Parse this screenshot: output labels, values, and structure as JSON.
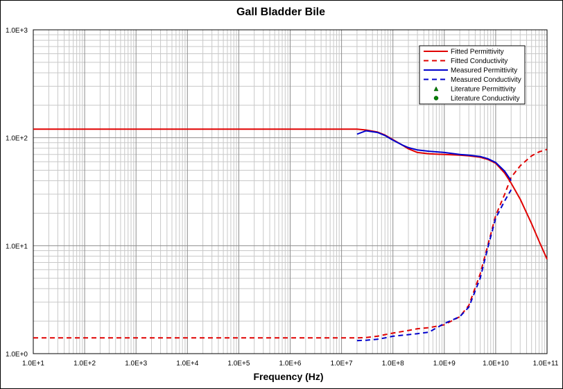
{
  "chart_data": {
    "type": "line",
    "title": "Gall Bladder Bile",
    "xlabel": "Frequency (Hz)",
    "ylabel": "",
    "x_scale": "log",
    "y_scale": "log",
    "xlim": [
      10,
      100000000000
    ],
    "ylim": [
      1,
      1000
    ],
    "grid": true,
    "legend_position": "top-right",
    "x_ticks": [
      {
        "value": 10,
        "label": "1.0E+1"
      },
      {
        "value": 100,
        "label": "1.0E+2"
      },
      {
        "value": 1000,
        "label": "1.0E+3"
      },
      {
        "value": 10000,
        "label": "1.0E+4"
      },
      {
        "value": 100000,
        "label": "1.0E+5"
      },
      {
        "value": 1000000,
        "label": "1.0E+6"
      },
      {
        "value": 10000000,
        "label": "1.0E+7"
      },
      {
        "value": 100000000,
        "label": "1.0E+8"
      },
      {
        "value": 1000000000,
        "label": "1.0E+9"
      },
      {
        "value": 10000000000,
        "label": "1.0E+10"
      },
      {
        "value": 100000000000,
        "label": "1.0E+11"
      }
    ],
    "y_ticks": [
      {
        "value": 1,
        "label": "1.0E+0"
      },
      {
        "value": 10,
        "label": "1.0E+1"
      },
      {
        "value": 100,
        "label": "1.0E+2"
      },
      {
        "value": 1000,
        "label": "1.0E+3"
      }
    ],
    "series": [
      {
        "name": "Fitted Permittivity",
        "color": "#e00000",
        "dash": "solid",
        "x": [
          10,
          100,
          1000,
          10000,
          100000,
          1000000,
          10000000,
          20000000,
          30000000,
          50000000,
          70000000,
          100000000,
          150000000,
          200000000,
          300000000,
          500000000,
          1000000000,
          2000000000,
          3000000000,
          5000000000,
          7000000000,
          10000000000,
          15000000000,
          20000000000,
          30000000000,
          50000000000,
          70000000000,
          100000000000
        ],
        "y": [
          120,
          120,
          120,
          120,
          120,
          120,
          120,
          120,
          118,
          113,
          106,
          96,
          86,
          79,
          73,
          71,
          70,
          69,
          68,
          66,
          63,
          58,
          47,
          38,
          27,
          16,
          11,
          7.5
        ]
      },
      {
        "name": "Fitted Conductivity",
        "color": "#e00000",
        "dash": "dashed",
        "x": [
          10,
          100,
          1000,
          10000,
          100000,
          1000000,
          10000000,
          20000000,
          30000000,
          50000000,
          70000000,
          100000000,
          150000000,
          200000000,
          300000000,
          500000000,
          1000000000,
          2000000000,
          3000000000,
          5000000000,
          7000000000,
          10000000000,
          15000000000,
          20000000000,
          30000000000,
          50000000000,
          70000000000,
          100000000000
        ],
        "y": [
          1.4,
          1.4,
          1.4,
          1.4,
          1.4,
          1.4,
          1.4,
          1.4,
          1.41,
          1.45,
          1.5,
          1.55,
          1.6,
          1.64,
          1.7,
          1.74,
          1.85,
          2.2,
          2.8,
          5.5,
          10,
          19,
          30,
          43,
          55,
          68,
          74,
          78
        ]
      },
      {
        "name": "Measured Permittivity",
        "color": "#0000cc",
        "dash": "solid",
        "x": [
          20000000,
          30000000,
          50000000,
          70000000,
          100000000,
          150000000,
          200000000,
          300000000,
          500000000,
          1000000000,
          2000000000,
          3000000000,
          5000000000,
          7000000000,
          10000000000,
          15000000000,
          20000000000
        ],
        "y": [
          108,
          116,
          112,
          105,
          95,
          86,
          81,
          77,
          75,
          73,
          70,
          69,
          67,
          64,
          59,
          49,
          40
        ]
      },
      {
        "name": "Measured Conductivity",
        "color": "#0000cc",
        "dash": "dashed",
        "x": [
          20000000,
          30000000,
          50000000,
          70000000,
          100000000,
          150000000,
          200000000,
          300000000,
          500000000,
          1000000000,
          2000000000,
          3000000000,
          5000000000,
          7000000000,
          10000000000,
          15000000000,
          20000000000
        ],
        "y": [
          1.32,
          1.33,
          1.36,
          1.4,
          1.45,
          1.48,
          1.5,
          1.53,
          1.58,
          1.9,
          2.2,
          2.7,
          5,
          9.5,
          18,
          26,
          33
        ]
      },
      {
        "name": "Literature Permittivity",
        "color": "#008000",
        "marker": "triangle",
        "x": [],
        "y": []
      },
      {
        "name": "Literature Conductivity",
        "color": "#008000",
        "marker": "circle",
        "x": [],
        "y": []
      }
    ]
  }
}
